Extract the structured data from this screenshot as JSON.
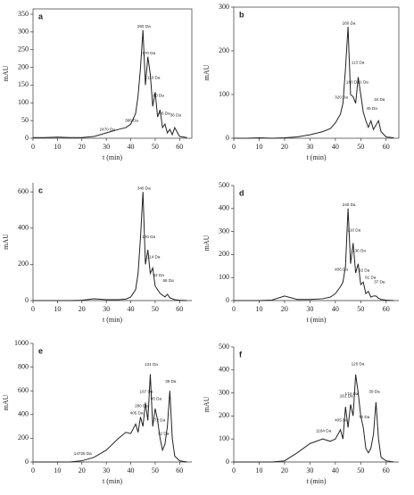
{
  "chart_data": [
    {
      "type": "line",
      "title": "a",
      "x_label": "t (min)",
      "y_label": "mAU",
      "frame": true,
      "color": "#222",
      "x": [
        0,
        5,
        10,
        15,
        20,
        25,
        30,
        35,
        38,
        40,
        42,
        43,
        44,
        45,
        46,
        47,
        48,
        49,
        50,
        51,
        52,
        53,
        54,
        55,
        56,
        57,
        58,
        60,
        63
      ],
      "values": [
        2,
        2,
        3,
        2,
        2,
        5,
        15,
        25,
        30,
        40,
        70,
        120,
        200,
        305,
        150,
        230,
        180,
        90,
        130,
        60,
        80,
        30,
        40,
        15,
        25,
        10,
        30,
        5,
        2
      ],
      "xlim": [
        0,
        65
      ],
      "xticks": [
        0,
        10,
        20,
        30,
        40,
        50,
        60
      ],
      "ylim": [
        0,
        365
      ],
      "yticks": [
        0,
        50,
        100,
        150,
        200,
        250,
        300,
        350
      ],
      "annotations": [
        {
          "text": "2470 Da",
          "x": 30,
          "y": 15
        },
        {
          "text": "386 Da",
          "x": 40,
          "y": 40
        },
        {
          "text": "260 Da",
          "x": 45,
          "y": 305
        },
        {
          "text": "170 Da",
          "x": 47,
          "y": 230
        },
        {
          "text": "110 Da",
          "x": 49,
          "y": 160
        },
        {
          "text": "80 Da",
          "x": 51,
          "y": 110
        },
        {
          "text": "46 Da",
          "x": 53.5,
          "y": 60
        },
        {
          "text": "36 Da",
          "x": 58,
          "y": 55
        }
      ]
    },
    {
      "type": "line",
      "title": "b",
      "x_label": "t (min)",
      "y_label": "mAU",
      "frame": true,
      "color": "#222",
      "x": [
        0,
        5,
        10,
        15,
        20,
        25,
        30,
        35,
        38,
        40,
        42,
        43,
        44,
        45,
        46,
        47,
        48,
        49,
        50,
        51,
        52,
        53,
        54,
        55,
        56,
        57,
        58,
        60,
        63
      ],
      "values": [
        0,
        0,
        1,
        0,
        1,
        3,
        8,
        15,
        22,
        35,
        55,
        80,
        160,
        255,
        100,
        95,
        80,
        140,
        100,
        60,
        40,
        25,
        40,
        20,
        30,
        40,
        15,
        3,
        1
      ],
      "xlim": [
        0,
        65
      ],
      "xticks": [
        0,
        10,
        20,
        30,
        40,
        50,
        60
      ],
      "ylim": [
        0,
        300
      ],
      "yticks": [
        0,
        100,
        200,
        300
      ],
      "annotations": [
        {
          "text": "320 Da",
          "x": 42,
          "y": 85
        },
        {
          "text": "260 Da",
          "x": 45,
          "y": 255
        },
        {
          "text": "180 Da",
          "x": 46.5,
          "y": 120
        },
        {
          "text": "113 Da",
          "x": 48.5,
          "y": 165
        },
        {
          "text": "91 Da",
          "x": 50.5,
          "y": 120
        },
        {
          "text": "45 Da",
          "x": 54,
          "y": 60
        },
        {
          "text": "34 Da",
          "x": 57,
          "y": 80
        }
      ]
    },
    {
      "type": "line",
      "title": "c",
      "x_label": "t (min)",
      "y_label": "mAU",
      "frame": false,
      "color": "#222",
      "x": [
        0,
        5,
        10,
        15,
        20,
        25,
        30,
        35,
        38,
        40,
        42,
        43,
        44,
        45,
        46,
        47,
        48,
        49,
        50,
        51,
        52,
        53,
        54,
        55,
        56,
        57,
        58,
        60,
        63
      ],
      "values": [
        0,
        0,
        0,
        0,
        2,
        10,
        5,
        5,
        8,
        20,
        60,
        150,
        350,
        600,
        200,
        280,
        150,
        180,
        80,
        60,
        40,
        30,
        20,
        35,
        15,
        10,
        5,
        2,
        0
      ],
      "xlim": [
        0,
        65
      ],
      "xticks": [
        0,
        10,
        20,
        30,
        40,
        50,
        60
      ],
      "ylim": [
        0,
        650
      ],
      "yticks": [
        0,
        200,
        400,
        600
      ],
      "annotations": [
        {
          "text": "340 Da",
          "x": 45,
          "y": 600
        },
        {
          "text": "170 Da",
          "x": 47,
          "y": 330
        },
        {
          "text": "114 Da",
          "x": 49,
          "y": 220
        },
        {
          "text": "82 Da",
          "x": 51,
          "y": 120
        },
        {
          "text": "56 Da",
          "x": 55,
          "y": 90
        }
      ]
    },
    {
      "type": "line",
      "title": "d",
      "x_label": "t (min)",
      "y_label": "mAU",
      "frame": false,
      "color": "#222",
      "x": [
        0,
        5,
        10,
        15,
        20,
        25,
        30,
        35,
        38,
        40,
        42,
        43,
        44,
        45,
        46,
        47,
        48,
        49,
        50,
        51,
        52,
        53,
        54,
        55,
        56,
        57,
        58,
        60,
        63
      ],
      "values": [
        0,
        0,
        0,
        2,
        20,
        5,
        5,
        8,
        15,
        30,
        60,
        80,
        150,
        400,
        160,
        250,
        120,
        160,
        70,
        80,
        30,
        40,
        15,
        20,
        20,
        10,
        5,
        2,
        0
      ],
      "xlim": [
        0,
        65
      ],
      "xticks": [
        0,
        10,
        20,
        30,
        40,
        50,
        60
      ],
      "ylim": [
        0,
        500
      ],
      "yticks": [
        0,
        100,
        200,
        300,
        400,
        500
      ],
      "annotations": [
        {
          "text": "406 Da",
          "x": 42,
          "y": 120
        },
        {
          "text": "240 Da",
          "x": 45,
          "y": 400
        },
        {
          "text": "210 Da",
          "x": 47,
          "y": 290
        },
        {
          "text": "136 Da",
          "x": 49,
          "y": 200
        },
        {
          "text": "92 Da",
          "x": 51,
          "y": 115
        },
        {
          "text": "61 Da",
          "x": 53.5,
          "y": 85
        },
        {
          "text": "37 Da",
          "x": 57,
          "y": 65
        }
      ]
    },
    {
      "type": "line",
      "title": "e",
      "x_label": "t (min)",
      "y_label": "mAU",
      "frame": false,
      "color": "#222",
      "x": [
        0,
        5,
        10,
        15,
        20,
        25,
        30,
        35,
        38,
        40,
        42,
        43,
        44,
        45,
        46,
        47,
        48,
        49,
        50,
        51,
        52,
        53,
        54,
        55,
        56,
        57,
        58,
        60,
        63
      ],
      "values": [
        0,
        0,
        0,
        0,
        10,
        40,
        100,
        200,
        250,
        240,
        320,
        250,
        380,
        300,
        500,
        350,
        740,
        300,
        450,
        350,
        200,
        100,
        150,
        300,
        600,
        200,
        50,
        10,
        0
      ],
      "xlim": [
        0,
        65
      ],
      "xticks": [
        0,
        10,
        20,
        30,
        40,
        50,
        60
      ],
      "ylim": [
        0,
        1000
      ],
      "yticks": [
        0,
        200,
        400,
        600,
        800,
        1000
      ],
      "annotations": [
        {
          "text": "14725 Da",
          "x": 20,
          "y": 40
        },
        {
          "text": "405 Da",
          "x": 42,
          "y": 380
        },
        {
          "text": "280 Da",
          "x": 44,
          "y": 440
        },
        {
          "text": "167 Da",
          "x": 46,
          "y": 560
        },
        {
          "text": "121 Da",
          "x": 48,
          "y": 790
        },
        {
          "text": "95 Da",
          "x": 50,
          "y": 500
        },
        {
          "text": "72 Da",
          "x": 51.5,
          "y": 320
        },
        {
          "text": "32 Da",
          "x": 53,
          "y": 210
        },
        {
          "text": "35 Da",
          "x": 56,
          "y": 650
        }
      ]
    },
    {
      "type": "line",
      "title": "f",
      "x_label": "t (min)",
      "y_label": "mAU",
      "frame": false,
      "color": "#222",
      "x": [
        0,
        5,
        10,
        15,
        20,
        25,
        30,
        35,
        38,
        40,
        42,
        43,
        44,
        45,
        46,
        47,
        48,
        49,
        50,
        51,
        52,
        53,
        54,
        55,
        56,
        57,
        58,
        60,
        63
      ],
      "values": [
        0,
        0,
        0,
        0,
        5,
        40,
        80,
        100,
        90,
        100,
        140,
        100,
        240,
        150,
        250,
        200,
        380,
        300,
        200,
        150,
        60,
        40,
        60,
        120,
        260,
        100,
        20,
        5,
        0
      ],
      "xlim": [
        0,
        65
      ],
      "xticks": [
        0,
        10,
        20,
        30,
        40,
        50,
        60
      ],
      "ylim": [
        0,
        500
      ],
      "yticks": [
        0,
        100,
        200,
        300,
        400,
        500
      ],
      "annotations": [
        {
          "text": "1164 Da",
          "x": 35,
          "y": 120
        },
        {
          "text": "405 Da",
          "x": 42,
          "y": 165
        },
        {
          "text": "261 Da",
          "x": 44,
          "y": 270
        },
        {
          "text": "174 Da",
          "x": 46,
          "y": 280
        },
        {
          "text": "120 Da",
          "x": 48.5,
          "y": 410
        },
        {
          "text": "72 Da",
          "x": 51,
          "y": 180
        },
        {
          "text": "39 Da",
          "x": 55,
          "y": 290
        }
      ]
    }
  ]
}
